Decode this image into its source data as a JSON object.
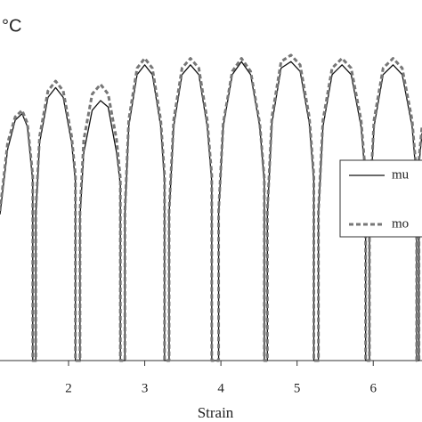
{
  "chart_data": {
    "type": "line",
    "annotation": "°C",
    "x_label": "Strain",
    "x": [
      1.1,
      1.2,
      1.3,
      1.39,
      1.46,
      1.53,
      1.53,
      1.57,
      1.57,
      1.62,
      1.73,
      1.83,
      1.93,
      2.04,
      2.09,
      2.09,
      2.15,
      2.15,
      2.2,
      2.31,
      2.42,
      2.52,
      2.63,
      2.68,
      2.68,
      2.74,
      2.74,
      2.79,
      2.9,
      3.0,
      3.1,
      3.21,
      3.26,
      3.26,
      3.32,
      3.32,
      3.38,
      3.49,
      3.6,
      3.71,
      3.82,
      3.88,
      3.88,
      3.97,
      3.97,
      4.03,
      4.15,
      4.27,
      4.39,
      4.51,
      4.57,
      4.57,
      4.61,
      4.61,
      4.67,
      4.79,
      4.92,
      5.04,
      5.16,
      5.22,
      5.22,
      5.28,
      5.28,
      5.34,
      5.46,
      5.59,
      5.71,
      5.84,
      5.9,
      5.9,
      5.95,
      5.95,
      6.01,
      6.13,
      6.26,
      6.38,
      6.51,
      6.57,
      6.57,
      6.6,
      6.6,
      6.64
    ],
    "series": [
      {
        "name": "mu",
        "color": "#111111",
        "line_style": "solid",
        "values": [
          45,
          65,
          74,
          76,
          72,
          55,
          0,
          0,
          45,
          67,
          81,
          84,
          81,
          67,
          55,
          0,
          0,
          44,
          64,
          77,
          80,
          78,
          64,
          54,
          0,
          0,
          45,
          72,
          88,
          91,
          88,
          72,
          55,
          0,
          0,
          45,
          72,
          88,
          91,
          88,
          72,
          55,
          0,
          0,
          45,
          72,
          88,
          92,
          88,
          72,
          55,
          0,
          0,
          45,
          73,
          90,
          92,
          89,
          73,
          55,
          0,
          0,
          45,
          72,
          88,
          91,
          88,
          72,
          55,
          0,
          0,
          45,
          72,
          88,
          91,
          88,
          72,
          55,
          0,
          0,
          60,
          70
        ]
      },
      {
        "name": "mo",
        "color": "#777777",
        "line_style": "dashed",
        "values": [
          46,
          67,
          75,
          77,
          73,
          57,
          0,
          0,
          46,
          69,
          83,
          86,
          83,
          69,
          57,
          0,
          0,
          46,
          68,
          82,
          85,
          82,
          68,
          56,
          0,
          0,
          46,
          74,
          90,
          93,
          90,
          74,
          57,
          0,
          0,
          46,
          74,
          90,
          93,
          90,
          74,
          57,
          0,
          0,
          46,
          73,
          89,
          93,
          89,
          73,
          56,
          0,
          0,
          46,
          75,
          92,
          94,
          91,
          75,
          57,
          0,
          0,
          46,
          74,
          90,
          93,
          90,
          74,
          57,
          0,
          0,
          46,
          74,
          90,
          93,
          90,
          74,
          57,
          0,
          0,
          62,
          72
        ]
      }
    ],
    "xlim": [
      1.1,
      6.64
    ],
    "ylim": [
      0,
      100
    ],
    "xticks": [
      2,
      3,
      4,
      5,
      6
    ],
    "legend": "right"
  }
}
